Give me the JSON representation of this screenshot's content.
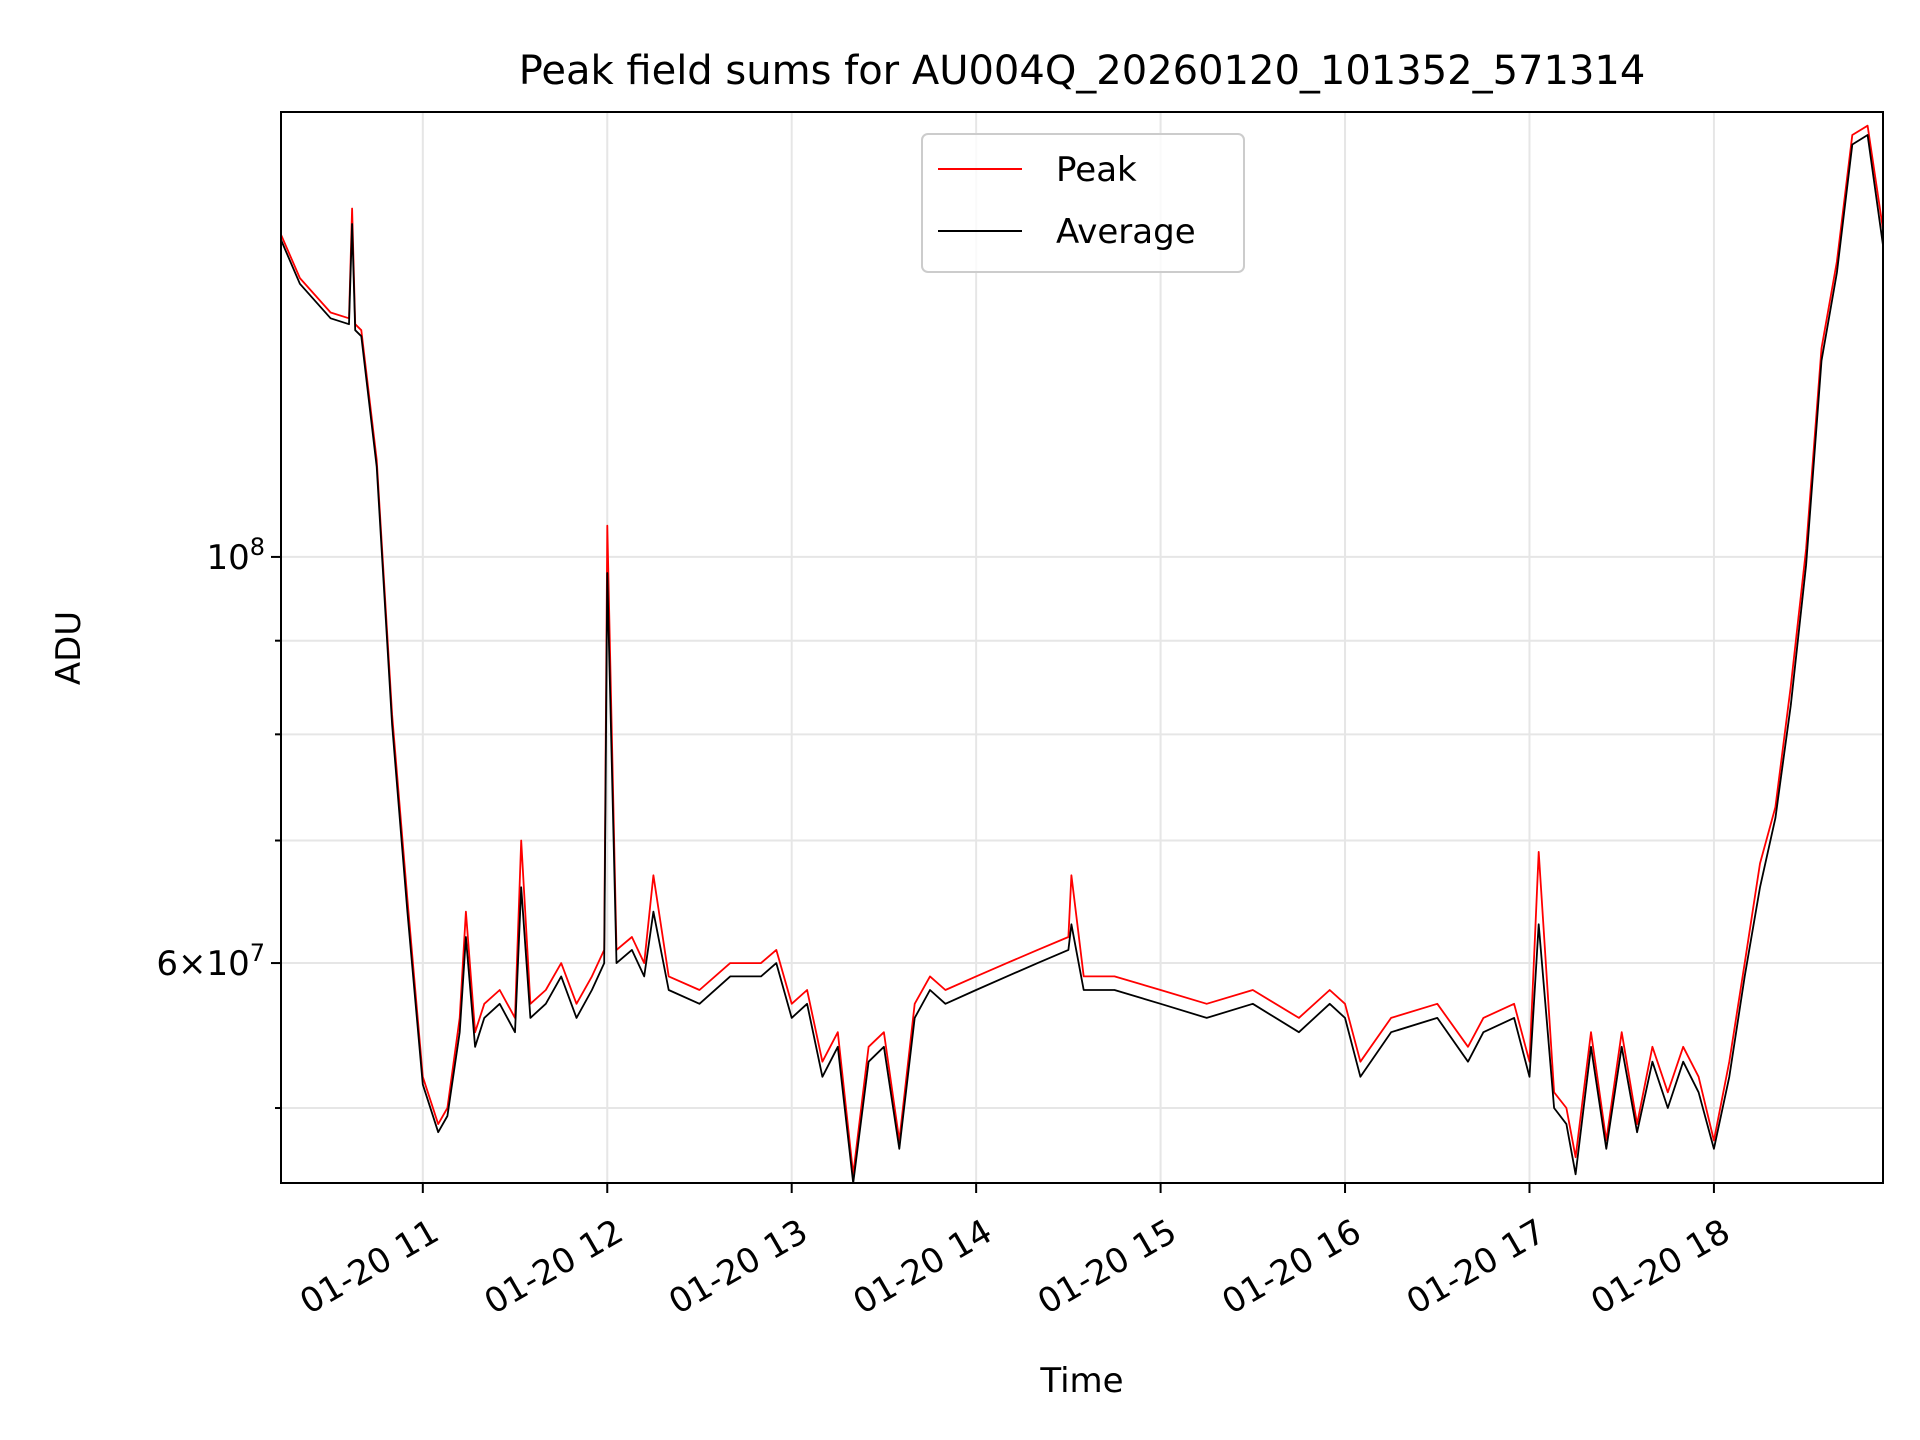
{
  "chart_data": {
    "type": "line",
    "title": "Peak field sums for AU004Q_20260120_101352_571314",
    "xlabel": "Time",
    "ylabel": "ADU",
    "y_scale": "log",
    "xlim": [
      "2026-01-20 10:13:52",
      "2026-01-20 18:55:00"
    ],
    "ylim": [
      45500000,
      175000000
    ],
    "x_ticks": [
      {
        "value": "2026-01-20 11:00",
        "label": "01-20 11"
      },
      {
        "value": "2026-01-20 12:00",
        "label": "01-20 12"
      },
      {
        "value": "2026-01-20 13:00",
        "label": "01-20 13"
      },
      {
        "value": "2026-01-20 14:00",
        "label": "01-20 14"
      },
      {
        "value": "2026-01-20 15:00",
        "label": "01-20 15"
      },
      {
        "value": "2026-01-20 16:00",
        "label": "01-20 16"
      },
      {
        "value": "2026-01-20 17:00",
        "label": "01-20 17"
      },
      {
        "value": "2026-01-20 18:00",
        "label": "01-20 18"
      }
    ],
    "y_major_ticks": [
      {
        "value": 100000000,
        "base": "10",
        "exp": "8"
      },
      {
        "value": 60000000,
        "mant": "6",
        "times": "×",
        "base": "10",
        "exp": "7"
      }
    ],
    "y_minor_ticks": [
      50000000,
      70000000,
      80000000,
      90000000
    ],
    "grid": true,
    "legend_position": "top-center",
    "series": [
      {
        "name": "Peak",
        "color": "#ff0000",
        "x": [
          "2026-01-20 10:13:52",
          "2026-01-20 10:20",
          "2026-01-20 10:30",
          "2026-01-20 10:36",
          "2026-01-20 10:37",
          "2026-01-20 10:38",
          "2026-01-20 10:40",
          "2026-01-20 10:45",
          "2026-01-20 10:50",
          "2026-01-20 10:55",
          "2026-01-20 11:00",
          "2026-01-20 11:05",
          "2026-01-20 11:08",
          "2026-01-20 11:12",
          "2026-01-20 11:14",
          "2026-01-20 11:17",
          "2026-01-20 11:20",
          "2026-01-20 11:25",
          "2026-01-20 11:30",
          "2026-01-20 11:32",
          "2026-01-20 11:35",
          "2026-01-20 11:40",
          "2026-01-20 11:45",
          "2026-01-20 11:50",
          "2026-01-20 11:55",
          "2026-01-20 11:59",
          "2026-01-20 12:00",
          "2026-01-20 12:03",
          "2026-01-20 12:08",
          "2026-01-20 12:12",
          "2026-01-20 12:15",
          "2026-01-20 12:20",
          "2026-01-20 12:30",
          "2026-01-20 12:40",
          "2026-01-20 12:50",
          "2026-01-20 12:55",
          "2026-01-20 13:00",
          "2026-01-20 13:05",
          "2026-01-20 13:10",
          "2026-01-20 13:15",
          "2026-01-20 13:20",
          "2026-01-20 13:25",
          "2026-01-20 13:30",
          "2026-01-20 13:35",
          "2026-01-20 13:40",
          "2026-01-20 13:45",
          "2026-01-20 13:50",
          "2026-01-20 14:00",
          "2026-01-20 14:10",
          "2026-01-20 14:20",
          "2026-01-20 14:30",
          "2026-01-20 14:31",
          "2026-01-20 14:35",
          "2026-01-20 14:45",
          "2026-01-20 15:00",
          "2026-01-20 15:15",
          "2026-01-20 15:30",
          "2026-01-20 15:45",
          "2026-01-20 15:55",
          "2026-01-20 16:00",
          "2026-01-20 16:05",
          "2026-01-20 16:15",
          "2026-01-20 16:30",
          "2026-01-20 16:40",
          "2026-01-20 16:45",
          "2026-01-20 16:55",
          "2026-01-20 17:00",
          "2026-01-20 17:03",
          "2026-01-20 17:08",
          "2026-01-20 17:12",
          "2026-01-20 17:15",
          "2026-01-20 17:20",
          "2026-01-20 17:25",
          "2026-01-20 17:30",
          "2026-01-20 17:35",
          "2026-01-20 17:40",
          "2026-01-20 17:45",
          "2026-01-20 17:50",
          "2026-01-20 17:55",
          "2026-01-20 18:00",
          "2026-01-20 18:05",
          "2026-01-20 18:10",
          "2026-01-20 18:15",
          "2026-01-20 18:20",
          "2026-01-20 18:25",
          "2026-01-20 18:30",
          "2026-01-20 18:35",
          "2026-01-20 18:40",
          "2026-01-20 18:45",
          "2026-01-20 18:50",
          "2026-01-20 18:55"
        ],
        "y": [
          150000000,
          142000000,
          136000000,
          135000000,
          155000000,
          134000000,
          133000000,
          113000000,
          82000000,
          65000000,
          52000000,
          49000000,
          50000000,
          56000000,
          64000000,
          55000000,
          57000000,
          58000000,
          56000000,
          70000000,
          57000000,
          58000000,
          60000000,
          57000000,
          59000000,
          61000000,
          104000000,
          61000000,
          62000000,
          60000000,
          67000000,
          59000000,
          58000000,
          60000000,
          60000000,
          61000000,
          57000000,
          58000000,
          53000000,
          55000000,
          46000000,
          54000000,
          55000000,
          48000000,
          57000000,
          59000000,
          58000000,
          59000000,
          60000000,
          61000000,
          62000000,
          67000000,
          59000000,
          59000000,
          58000000,
          57000000,
          58000000,
          56000000,
          58000000,
          57000000,
          53000000,
          56000000,
          57000000,
          54000000,
          56000000,
          57000000,
          53000000,
          69000000,
          51000000,
          50000000,
          47000000,
          55000000,
          48000000,
          55000000,
          49000000,
          54000000,
          51000000,
          54000000,
          52000000,
          48000000,
          53000000,
          60000000,
          68000000,
          73000000,
          85000000,
          101000000,
          130000000,
          145000000,
          170000000,
          172000000,
          151000000
        ]
      },
      {
        "name": "Average",
        "color": "#000000",
        "x": [
          "2026-01-20 10:13:52",
          "2026-01-20 10:20",
          "2026-01-20 10:30",
          "2026-01-20 10:36",
          "2026-01-20 10:37",
          "2026-01-20 10:38",
          "2026-01-20 10:40",
          "2026-01-20 10:45",
          "2026-01-20 10:50",
          "2026-01-20 10:55",
          "2026-01-20 11:00",
          "2026-01-20 11:05",
          "2026-01-20 11:08",
          "2026-01-20 11:12",
          "2026-01-20 11:14",
          "2026-01-20 11:17",
          "2026-01-20 11:20",
          "2026-01-20 11:25",
          "2026-01-20 11:30",
          "2026-01-20 11:32",
          "2026-01-20 11:35",
          "2026-01-20 11:40",
          "2026-01-20 11:45",
          "2026-01-20 11:50",
          "2026-01-20 11:55",
          "2026-01-20 11:59",
          "2026-01-20 12:00",
          "2026-01-20 12:03",
          "2026-01-20 12:08",
          "2026-01-20 12:12",
          "2026-01-20 12:15",
          "2026-01-20 12:20",
          "2026-01-20 12:30",
          "2026-01-20 12:40",
          "2026-01-20 12:50",
          "2026-01-20 12:55",
          "2026-01-20 13:00",
          "2026-01-20 13:05",
          "2026-01-20 13:10",
          "2026-01-20 13:15",
          "2026-01-20 13:20",
          "2026-01-20 13:25",
          "2026-01-20 13:30",
          "2026-01-20 13:35",
          "2026-01-20 13:40",
          "2026-01-20 13:45",
          "2026-01-20 13:50",
          "2026-01-20 14:00",
          "2026-01-20 14:10",
          "2026-01-20 14:20",
          "2026-01-20 14:30",
          "2026-01-20 14:31",
          "2026-01-20 14:35",
          "2026-01-20 14:45",
          "2026-01-20 15:00",
          "2026-01-20 15:15",
          "2026-01-20 15:30",
          "2026-01-20 15:45",
          "2026-01-20 15:55",
          "2026-01-20 16:00",
          "2026-01-20 16:05",
          "2026-01-20 16:15",
          "2026-01-20 16:30",
          "2026-01-20 16:40",
          "2026-01-20 16:45",
          "2026-01-20 16:55",
          "2026-01-20 17:00",
          "2026-01-20 17:03",
          "2026-01-20 17:08",
          "2026-01-20 17:12",
          "2026-01-20 17:15",
          "2026-01-20 17:20",
          "2026-01-20 17:25",
          "2026-01-20 17:30",
          "2026-01-20 17:35",
          "2026-01-20 17:40",
          "2026-01-20 17:45",
          "2026-01-20 17:50",
          "2026-01-20 17:55",
          "2026-01-20 18:00",
          "2026-01-20 18:05",
          "2026-01-20 18:10",
          "2026-01-20 18:15",
          "2026-01-20 18:20",
          "2026-01-20 18:25",
          "2026-01-20 18:30",
          "2026-01-20 18:35",
          "2026-01-20 18:40",
          "2026-01-20 18:45",
          "2026-01-20 18:50",
          "2026-01-20 18:55"
        ],
        "y": [
          149000000,
          141000000,
          135000000,
          134000000,
          152000000,
          133000000,
          132000000,
          112000000,
          81000000,
          64000000,
          51500000,
          48500000,
          49500000,
          55000000,
          62000000,
          54000000,
          56000000,
          57000000,
          55000000,
          66000000,
          56000000,
          57000000,
          59000000,
          56000000,
          58000000,
          60000000,
          98000000,
          60000000,
          61000000,
          59000000,
          64000000,
          58000000,
          57000000,
          59000000,
          59000000,
          60000000,
          56000000,
          57000000,
          52000000,
          54000000,
          45500000,
          53000000,
          54000000,
          47500000,
          56000000,
          58000000,
          57000000,
          58000000,
          59000000,
          60000000,
          61000000,
          63000000,
          58000000,
          58000000,
          57000000,
          56000000,
          57000000,
          55000000,
          57000000,
          56000000,
          52000000,
          55000000,
          56000000,
          53000000,
          55000000,
          56000000,
          52000000,
          63000000,
          50000000,
          49000000,
          46000000,
          54000000,
          47500000,
          54000000,
          48500000,
          53000000,
          50000000,
          53000000,
          51000000,
          47500000,
          52000000,
          59000000,
          66000000,
          72000000,
          83000000,
          99000000,
          128000000,
          143000000,
          168000000,
          170000000,
          148000000
        ]
      }
    ]
  }
}
